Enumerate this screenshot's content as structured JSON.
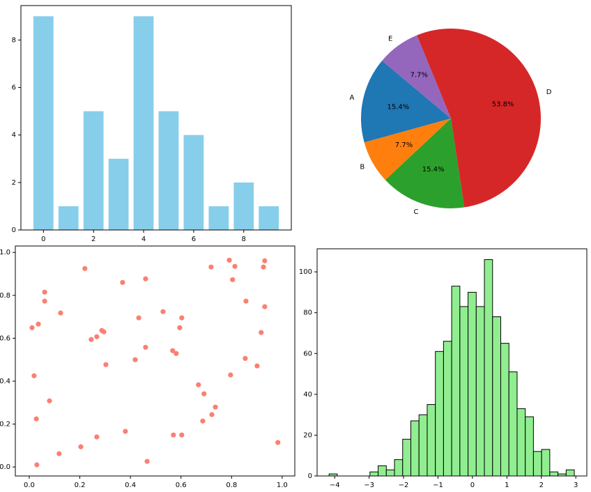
{
  "chart_data": [
    {
      "type": "bar",
      "x": [
        0,
        1,
        2,
        3,
        4,
        5,
        6,
        7,
        8,
        9
      ],
      "values": [
        9,
        1,
        5,
        3,
        9,
        5,
        4,
        1,
        2,
        1
      ],
      "color": "#87ceeb",
      "xlim": [
        -0.9,
        9.9
      ],
      "ylim": [
        0,
        9.45
      ],
      "xticks": [
        0,
        2,
        4,
        6,
        8
      ],
      "yticks": [
        0,
        2,
        4,
        6,
        8
      ]
    },
    {
      "type": "pie",
      "labels": [
        "A",
        "B",
        "C",
        "D",
        "E"
      ],
      "values": [
        15.4,
        7.7,
        15.4,
        53.8,
        7.7
      ],
      "value_labels": [
        "15.4%",
        "7.7%",
        "15.4%",
        "53.8%",
        "7.7%"
      ],
      "colors": [
        "#1f77b4",
        "#ff7f0e",
        "#2ca02c",
        "#d62728",
        "#9467bd"
      ],
      "startangle": 140
    },
    {
      "type": "scatter",
      "color": "#fa8072",
      "x": [
        0.011,
        0.036,
        0.061,
        0.061,
        0.124,
        0.019,
        0.028,
        0.08,
        0.03,
        0.118,
        0.204,
        0.267,
        0.22,
        0.245,
        0.267,
        0.287,
        0.295,
        0.303,
        0.369,
        0.38,
        0.433,
        0.419,
        0.46,
        0.46,
        0.466,
        0.529,
        0.567,
        0.581,
        0.57,
        0.595,
        0.603,
        0.603,
        0.669,
        0.691,
        0.686,
        0.722,
        0.736,
        0.719,
        0.791,
        0.813,
        0.804,
        0.796,
        0.857,
        0.854,
        0.901,
        0.917,
        0.926,
        0.931,
        0.931,
        0.983
      ],
      "values": [
        0.649,
        0.666,
        0.815,
        0.773,
        0.718,
        0.425,
        0.224,
        0.308,
        0.01,
        0.062,
        0.094,
        0.14,
        0.925,
        0.594,
        0.607,
        0.636,
        0.63,
        0.477,
        0.86,
        0.166,
        0.695,
        0.5,
        0.877,
        0.558,
        0.026,
        0.724,
        0.542,
        0.529,
        0.149,
        0.649,
        0.695,
        0.149,
        0.383,
        0.341,
        0.214,
        0.244,
        0.279,
        0.932,
        0.964,
        0.935,
        0.873,
        0.429,
        0.773,
        0.506,
        0.471,
        0.627,
        0.932,
        0.961,
        0.747,
        0.114
      ],
      "xlim": [
        -0.055,
        1.05
      ],
      "ylim": [
        -0.042,
        1.03
      ],
      "xticks": [
        {
          "value": 0,
          "label": "0.0"
        },
        0.2,
        0.4,
        0.6,
        0.8,
        {
          "value": 1,
          "label": "1.0"
        }
      ],
      "yticks": [
        {
          "value": 0,
          "label": "0.0"
        },
        0.2,
        0.4,
        0.6,
        0.8,
        {
          "value": 1,
          "label": "1.0"
        }
      ]
    },
    {
      "type": "histogram",
      "color": "#90ee90",
      "edgecolor": "#000000",
      "bins": [
        -4.162,
        -3.925,
        -3.687,
        -3.45,
        -3.213,
        -2.976,
        -2.738,
        -2.501,
        -2.264,
        -2.026,
        -1.789,
        -1.552,
        -1.314,
        -1.077,
        -0.84,
        -0.603,
        -0.365,
        -0.128,
        0.109,
        0.347,
        0.584,
        0.821,
        1.059,
        1.296,
        1.533,
        1.77,
        2.008,
        2.245,
        2.482,
        2.72,
        2.957
      ],
      "values": [
        1,
        0,
        0,
        0,
        0,
        2,
        5,
        3,
        8,
        18,
        27,
        30,
        35,
        61,
        66,
        93,
        83,
        90,
        83,
        106,
        78,
        65,
        51,
        33,
        29,
        12,
        13,
        2,
        1,
        3
      ],
      "xlim": [
        -4.51,
        3.32
      ],
      "ylim": [
        0,
        111.3
      ],
      "xticks": [
        {
          "value": -4,
          "label": "−4"
        },
        {
          "value": -3,
          "label": "−3"
        },
        {
          "value": -2,
          "label": "−2"
        },
        {
          "value": -1,
          "label": "−1"
        },
        0,
        1,
        2,
        3
      ],
      "yticks": [
        0,
        20,
        40,
        60,
        80,
        100
      ]
    }
  ]
}
